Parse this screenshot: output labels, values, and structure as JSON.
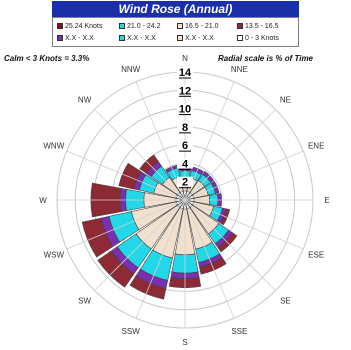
{
  "header": {
    "title": "Wind Rose  (Annual)"
  },
  "legend": {
    "items": [
      {
        "label": "25.24 Knots",
        "color": "#7a1525"
      },
      {
        "label": "21.0 - 24.2",
        "color": "#22d8e8"
      },
      {
        "label": "16.5 - 21.0",
        "color": "#f2e0cf"
      },
      {
        "label": "13.5 - 16.5",
        "color": "#8e2a35"
      },
      {
        "label": "X.X - X.X",
        "color": "#7a2fb0"
      },
      {
        "label": "X.X - X.X",
        "color": "#22d8e8"
      },
      {
        "label": "X.X - X.X",
        "color": "#f2e0cf"
      },
      {
        "label": "0 - 3 Knots",
        "color": "#ffffff"
      }
    ]
  },
  "notes": {
    "calm": "Calm <  3 Knots  =  3.3%",
    "radial_scale": "Radial scale is % of Time"
  },
  "chart_data": {
    "type": "wind-rose",
    "title": "Wind Rose  (Annual)",
    "radial_unit": "% of Time",
    "rlim": [
      0,
      14
    ],
    "radial_ticks": [
      "2",
      "4",
      "6",
      "8",
      "10",
      "12",
      "14"
    ],
    "directions": [
      "N",
      "NNE",
      "NE",
      "ENE",
      "E",
      "ESE",
      "SE",
      "SSE",
      "S",
      "SSW",
      "SW",
      "WSW",
      "W",
      "WNW",
      "NW",
      "NNW"
    ],
    "series": [
      {
        "name": "0 - 3 Knots",
        "color": "#ffffff",
        "values": [
          1.0,
          1.0,
          1.0,
          1.0,
          1.0,
          1.0,
          1.0,
          1.0,
          1.0,
          1.0,
          1.0,
          1.0,
          1.0,
          1.0,
          1.0,
          1.0
        ]
      },
      {
        "name": "X.X - X.X",
        "color": "#f2e0cf",
        "values": [
          1.5,
          1.5,
          1.6,
          1.6,
          1.7,
          2.2,
          3.5,
          4.5,
          5.0,
          5.5,
          5.5,
          5.0,
          3.5,
          2.5,
          2.0,
          1.6
        ]
      },
      {
        "name": "X.X - X.X",
        "color": "#22d8e8",
        "values": [
          0.7,
          0.8,
          0.8,
          0.8,
          0.9,
          1.0,
          1.3,
          1.5,
          2.0,
          2.5,
          2.5,
          2.5,
          2.0,
          1.6,
          1.5,
          1.0
        ]
      },
      {
        "name": "X.X - X.X",
        "color": "#7a2fb0",
        "values": [
          0.3,
          0.4,
          0.4,
          0.4,
          0.4,
          0.4,
          0.5,
          0.5,
          0.6,
          0.9,
          0.8,
          0.9,
          0.6,
          0.6,
          0.6,
          0.3
        ]
      },
      {
        "name": "13.5 - 16.5",
        "color": "#8e2a35",
        "values": [
          0.0,
          0.0,
          0.0,
          0.0,
          0.0,
          0.4,
          0.6,
          0.8,
          1.0,
          1.2,
          1.8,
          2.1,
          3.2,
          1.7,
          0.9,
          0.0
        ]
      }
    ],
    "grid": true
  }
}
